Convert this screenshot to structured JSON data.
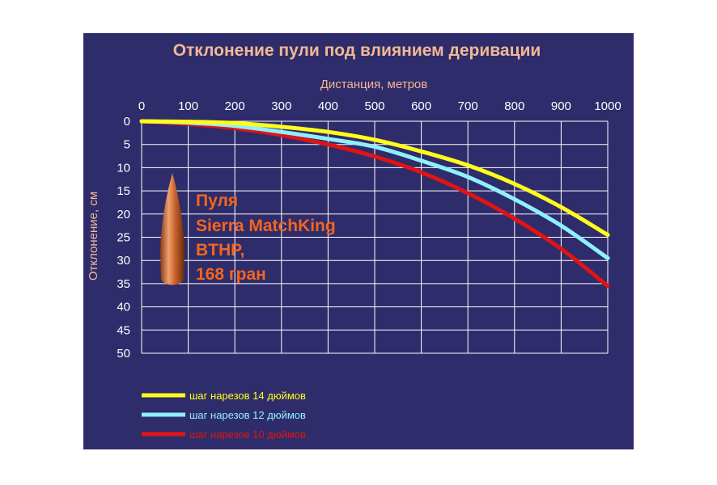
{
  "chart_data": {
    "type": "line",
    "title": "Отклонение пули под влиянием деривации",
    "xlabel": "Дистанция, метров",
    "ylabel": "Отклонение, см",
    "x": [
      0,
      100,
      200,
      300,
      400,
      500,
      600,
      700,
      800,
      900,
      1000
    ],
    "x_ticks": [
      "0",
      "100",
      "200",
      "300",
      "400",
      "500",
      "600",
      "700",
      "800",
      "900",
      "1000"
    ],
    "y_ticks": [
      "0",
      "5",
      "10",
      "15",
      "20",
      "25",
      "30",
      "35",
      "40",
      "45",
      "50"
    ],
    "xlim": [
      0,
      1000
    ],
    "ylim": [
      0,
      50
    ],
    "y_inverted": true,
    "x_axis_position": "top",
    "grid": true,
    "legend_position": "bottom-left",
    "annotation": [
      "Пуля",
      "Sierra MatchKing",
      "BTHP,",
      "168 гран"
    ],
    "series": [
      {
        "name": "шаг нарезов 14 дюймов",
        "color": "#ffff1a",
        "values": [
          0,
          0.1,
          0.4,
          1.2,
          2.3,
          4.0,
          6.5,
          9.5,
          13.5,
          18.5,
          24.5
        ]
      },
      {
        "name": "шаг нарезов 12 дюймов",
        "color": "#8ef0ff",
        "values": [
          0,
          0.3,
          1.0,
          2.3,
          3.8,
          5.5,
          8.5,
          12.0,
          16.8,
          22.5,
          29.5
        ]
      },
      {
        "name": "шаг нарезов 10 дюймов",
        "color": "#e01414",
        "values": [
          0,
          0.6,
          1.5,
          3.0,
          5.0,
          7.6,
          11.0,
          15.5,
          21.0,
          27.5,
          35.5
        ]
      }
    ]
  }
}
